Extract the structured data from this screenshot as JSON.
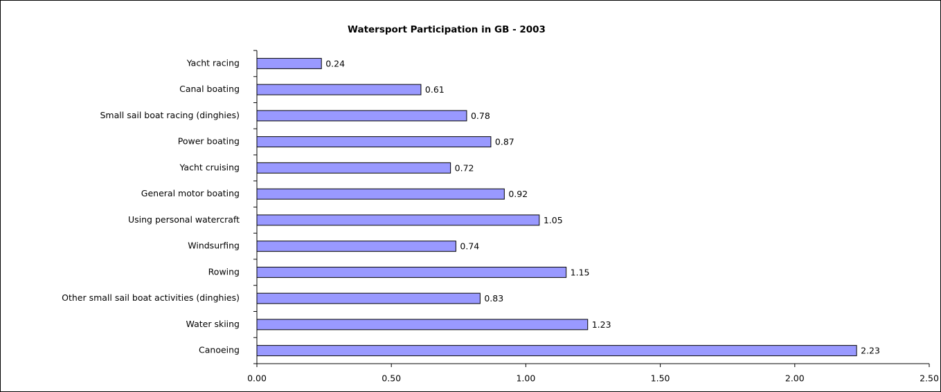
{
  "chart_data": {
    "type": "hbar",
    "title": "Watersport Participation in GB - 2003",
    "categories": [
      "Yacht racing",
      "Canal boating",
      "Small sail boat racing (dinghies)",
      "Power boating",
      "Yacht cruising",
      "General motor boating",
      "Using personal watercraft",
      "Windsurfing",
      "Rowing",
      "Other small sail boat activities (dinghies)",
      "Water skiing",
      "Canoeing"
    ],
    "values": [
      0.24,
      0.61,
      0.78,
      0.87,
      0.72,
      0.92,
      1.05,
      0.74,
      1.15,
      0.83,
      1.23,
      2.23
    ],
    "color": "#9999ff",
    "xlim": [
      0,
      2.5
    ],
    "xticks": [
      {
        "value": 0,
        "label": "0.00"
      },
      {
        "value": 0.5,
        "label": "0.50"
      },
      {
        "value": 1,
        "label": "1.00"
      },
      {
        "value": 1.5,
        "label": "1.50"
      },
      {
        "value": 2,
        "label": "2.00"
      },
      {
        "value": 2.5,
        "label": "2.50"
      }
    ]
  }
}
